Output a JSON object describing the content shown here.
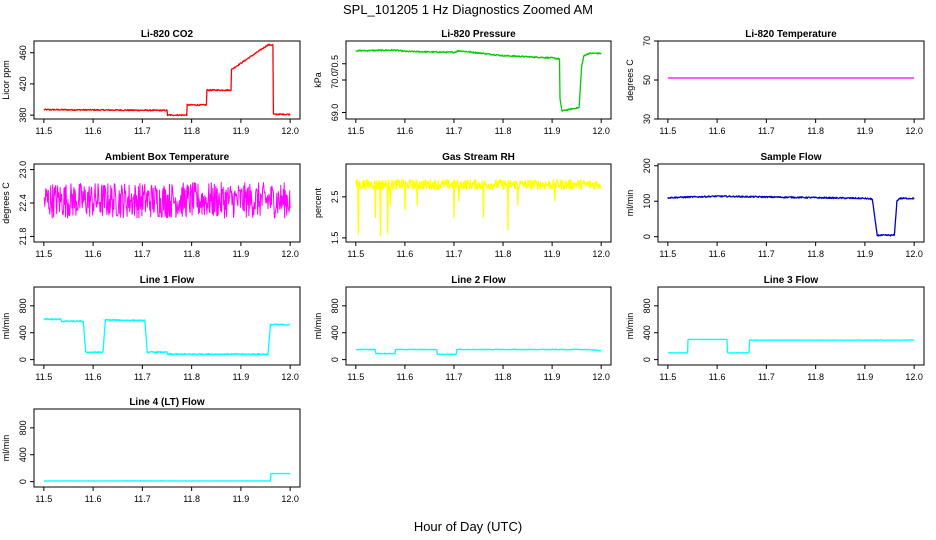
{
  "figure": {
    "title": "SPL_101205  1 Hz Diagnostics Zoomed AM",
    "xlabel": "Hour of Day (UTC)"
  },
  "chart_data": [
    {
      "type": "line",
      "title": "Li-820 CO2",
      "ylabel": "Licor ppm",
      "color": "#ff0000",
      "xlim": [
        11.5,
        12.0
      ],
      "ylim": [
        375,
        475
      ],
      "yticks": [
        380,
        420,
        460
      ],
      "xticks": [
        11.5,
        11.6,
        11.7,
        11.8,
        11.9,
        12.0
      ],
      "noise": 0.8,
      "x": [
        11.5,
        11.75,
        11.75,
        11.79,
        11.79,
        11.83,
        11.83,
        11.88,
        11.88,
        11.955,
        11.965,
        11.965,
        12.0
      ],
      "y": [
        387,
        386,
        380,
        380,
        393,
        393,
        412,
        412,
        438,
        470,
        470,
        381,
        381
      ]
    },
    {
      "type": "line",
      "title": "Li-820 Pressure",
      "ylabel": "kPa",
      "color": "#00cc00",
      "xlim": [
        11.5,
        12.0
      ],
      "ylim": [
        68.8,
        71.2
      ],
      "yticks": [
        69.0,
        70.0,
        70.5
      ],
      "xticks": [
        11.5,
        11.6,
        11.7,
        11.8,
        11.9,
        12.0
      ],
      "noise": 0.02,
      "x": [
        11.5,
        11.58,
        11.6,
        11.7,
        11.71,
        11.8,
        11.9,
        11.915,
        11.915,
        11.92,
        11.955,
        11.96,
        11.965,
        11.975,
        12.0
      ],
      "y": [
        70.9,
        70.92,
        70.88,
        70.85,
        70.9,
        70.75,
        70.68,
        70.65,
        69.5,
        69.05,
        69.15,
        70.4,
        70.75,
        70.82,
        70.82
      ]
    },
    {
      "type": "line",
      "title": "Li-820 Temperature",
      "ylabel": "degrees C",
      "color": "#ff00ff",
      "xlim": [
        11.5,
        12.0
      ],
      "ylim": [
        30,
        70
      ],
      "yticks": [
        30,
        50,
        70
      ],
      "xticks": [
        11.5,
        11.6,
        11.7,
        11.8,
        11.9,
        12.0
      ],
      "noise": 0,
      "x": [
        11.5,
        12.0
      ],
      "y": [
        51,
        51
      ]
    },
    {
      "type": "line",
      "title": "Ambient Box Temperature",
      "ylabel": "degrees C",
      "color": "#ff00ff",
      "xlim": [
        11.5,
        12.0
      ],
      "ylim": [
        21.7,
        23.1
      ],
      "yticks": [
        21.8,
        22.4,
        23.0
      ],
      "xticks": [
        11.5,
        11.6,
        11.7,
        11.8,
        11.9,
        12.0
      ],
      "noise": 0.32,
      "x": [
        11.5,
        12.0
      ],
      "y": [
        22.45,
        22.45
      ]
    },
    {
      "type": "line",
      "title": "Gas Stream RH",
      "ylabel": "percent",
      "color": "#ffff00",
      "xlim": [
        11.5,
        12.0
      ],
      "ylim": [
        1.4,
        3.3
      ],
      "yticks": [
        1.5,
        2.5
      ],
      "xticks": [
        11.5,
        11.6,
        11.7,
        11.8,
        11.9,
        12.0
      ],
      "noise": 0.12,
      "x": [
        11.5,
        12.0
      ],
      "y": [
        2.8,
        2.8
      ],
      "spikes": [
        [
          11.505,
          1.6
        ],
        [
          11.54,
          2.0
        ],
        [
          11.55,
          1.55
        ],
        [
          11.565,
          1.6
        ],
        [
          11.57,
          2.3
        ],
        [
          11.6,
          2.2
        ],
        [
          11.625,
          2.3
        ],
        [
          11.7,
          2.0
        ],
        [
          11.71,
          2.4
        ],
        [
          11.76,
          2.0
        ],
        [
          11.81,
          1.7
        ],
        [
          11.83,
          2.3
        ],
        [
          11.905,
          2.4
        ]
      ]
    },
    {
      "type": "line",
      "title": "Sample Flow",
      "ylabel": "ml/min",
      "color": "#0000cc",
      "xlim": [
        11.5,
        12.0
      ],
      "ylim": [
        -15,
        205
      ],
      "yticks": [
        0,
        100,
        200
      ],
      "xticks": [
        11.5,
        11.6,
        11.7,
        11.8,
        11.9,
        12.0
      ],
      "noise": 2,
      "x": [
        11.5,
        11.6,
        11.7,
        11.8,
        11.9,
        11.915,
        11.925,
        11.96,
        11.965,
        11.97,
        12.0
      ],
      "y": [
        110,
        114,
        112,
        110,
        108,
        106,
        4,
        4,
        100,
        108,
        108
      ]
    },
    {
      "type": "line",
      "title": "Line 1 Flow",
      "ylabel": "ml/min",
      "color": "#00ffff",
      "xlim": [
        11.5,
        12.0
      ],
      "ylim": [
        -80,
        1080
      ],
      "yticks": [
        0,
        400,
        800
      ],
      "xticks": [
        11.5,
        11.6,
        11.7,
        11.8,
        11.9,
        12.0
      ],
      "noise": 10,
      "x": [
        11.5,
        11.535,
        11.535,
        11.58,
        11.585,
        11.62,
        11.625,
        11.705,
        11.71,
        11.75,
        11.75,
        11.955,
        11.96,
        12.0
      ],
      "y": [
        600,
        600,
        570,
        570,
        110,
        110,
        590,
        580,
        110,
        110,
        80,
        80,
        520,
        520
      ]
    },
    {
      "type": "line",
      "title": "Line 2 Flow",
      "ylabel": "ml/min",
      "color": "#00ffff",
      "xlim": [
        11.5,
        12.0
      ],
      "ylim": [
        -80,
        1080
      ],
      "yticks": [
        0,
        400,
        800
      ],
      "xticks": [
        11.5,
        11.6,
        11.7,
        11.8,
        11.9,
        12.0
      ],
      "noise": 5,
      "x": [
        11.5,
        11.54,
        11.54,
        11.58,
        11.58,
        11.665,
        11.665,
        11.705,
        11.705,
        11.97,
        12.0
      ],
      "y": [
        150,
        150,
        90,
        90,
        150,
        150,
        80,
        80,
        150,
        150,
        135
      ]
    },
    {
      "type": "line",
      "title": "Line 3 Flow",
      "ylabel": "ml/min",
      "color": "#00ffff",
      "xlim": [
        11.5,
        12.0
      ],
      "ylim": [
        -80,
        1080
      ],
      "yticks": [
        0,
        400,
        800
      ],
      "xticks": [
        11.5,
        11.6,
        11.7,
        11.8,
        11.9,
        12.0
      ],
      "noise": 3,
      "x": [
        11.5,
        11.54,
        11.54,
        11.62,
        11.62,
        11.665,
        11.665,
        12.0
      ],
      "y": [
        100,
        100,
        300,
        300,
        100,
        100,
        290,
        290
      ]
    },
    {
      "type": "line",
      "title": "Line 4 (LT) Flow",
      "ylabel": "ml/min",
      "color": "#00ffff",
      "xlim": [
        11.5,
        12.0
      ],
      "ylim": [
        -80,
        1080
      ],
      "yticks": [
        0,
        400,
        800
      ],
      "xticks": [
        11.5,
        11.6,
        11.7,
        11.8,
        11.9,
        12.0
      ],
      "noise": 2,
      "x": [
        11.5,
        11.96,
        11.96,
        12.0
      ],
      "y": [
        10,
        10,
        120,
        120
      ]
    }
  ]
}
